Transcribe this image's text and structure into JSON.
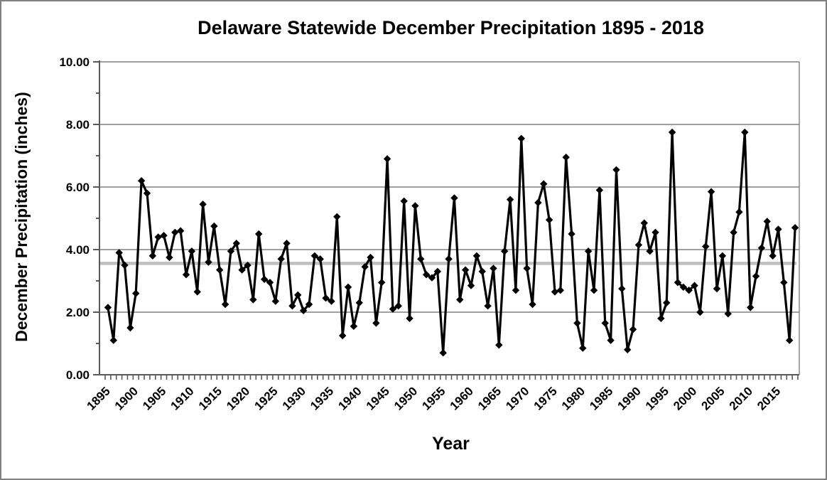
{
  "header": {
    "title": "Delaware Statewide December Precipitation 1895 - 2018"
  },
  "axes": {
    "y_title": "December Precipitation (inches)",
    "x_title": "Year"
  },
  "chart_data": {
    "type": "line",
    "title": "Delaware Statewide December Precipitation 1895 - 2018",
    "xlabel": "Year",
    "ylabel": "December Precipitation (inches)",
    "ylim": [
      0,
      10
    ],
    "y_major_ticks": [
      0,
      2,
      4,
      6,
      8,
      10
    ],
    "y_tick_labels": [
      "0.00",
      "2.00",
      "4.00",
      "6.00",
      "8.00",
      "10.00"
    ],
    "y_minor_unit": 1,
    "x_tick_label_years": [
      1895,
      1900,
      1905,
      1910,
      1915,
      1920,
      1925,
      1930,
      1935,
      1940,
      1945,
      1950,
      1955,
      1960,
      1965,
      1970,
      1975,
      1980,
      1985,
      1990,
      1995,
      2000,
      2005,
      2010,
      2015
    ],
    "grid": "horizontal-major",
    "legend": "none",
    "marker": "diamond",
    "mean_line_value": 3.56,
    "colors": {
      "series": "#000000",
      "mean_line": "#bfbfbf",
      "gridline": "#808080",
      "axis": "#595959",
      "background": "#ffffff",
      "frame_border": "#808080"
    },
    "years": [
      1895,
      1896,
      1897,
      1898,
      1899,
      1900,
      1901,
      1902,
      1903,
      1904,
      1905,
      1906,
      1907,
      1908,
      1909,
      1910,
      1911,
      1912,
      1913,
      1914,
      1915,
      1916,
      1917,
      1918,
      1919,
      1920,
      1921,
      1922,
      1923,
      1924,
      1925,
      1926,
      1927,
      1928,
      1929,
      1930,
      1931,
      1932,
      1933,
      1934,
      1935,
      1936,
      1937,
      1938,
      1939,
      1940,
      1941,
      1942,
      1943,
      1944,
      1945,
      1946,
      1947,
      1948,
      1949,
      1950,
      1951,
      1952,
      1953,
      1954,
      1955,
      1956,
      1957,
      1958,
      1959,
      1960,
      1961,
      1962,
      1963,
      1964,
      1965,
      1966,
      1967,
      1968,
      1969,
      1970,
      1971,
      1972,
      1973,
      1974,
      1975,
      1976,
      1977,
      1978,
      1979,
      1980,
      1981,
      1982,
      1983,
      1984,
      1985,
      1986,
      1987,
      1988,
      1989,
      1990,
      1991,
      1992,
      1993,
      1994,
      1995,
      1996,
      1997,
      1998,
      1999,
      2000,
      2001,
      2002,
      2003,
      2004,
      2005,
      2006,
      2007,
      2008,
      2009,
      2010,
      2011,
      2012,
      2013,
      2014,
      2015,
      2016,
      2017,
      2018
    ],
    "values": [
      2.15,
      1.1,
      3.9,
      3.5,
      1.5,
      2.6,
      6.2,
      5.8,
      3.8,
      4.4,
      4.45,
      3.75,
      4.55,
      4.6,
      3.2,
      3.95,
      2.65,
      5.45,
      3.6,
      4.75,
      3.35,
      2.25,
      3.95,
      4.2,
      3.35,
      3.5,
      2.4,
      4.5,
      3.05,
      2.95,
      2.35,
      3.7,
      4.2,
      2.2,
      2.55,
      2.05,
      2.25,
      3.8,
      3.7,
      2.45,
      2.35,
      5.05,
      1.25,
      2.8,
      1.55,
      2.3,
      3.45,
      3.75,
      1.65,
      2.95,
      6.9,
      2.1,
      2.2,
      5.55,
      1.8,
      5.4,
      3.7,
      3.2,
      3.1,
      3.3,
      0.7,
      3.7,
      5.65,
      2.4,
      3.35,
      2.85,
      3.8,
      3.3,
      2.2,
      3.4,
      0.95,
      3.95,
      5.6,
      2.7,
      7.55,
      3.4,
      2.25,
      5.5,
      6.1,
      4.95,
      2.65,
      2.7,
      6.95,
      4.5,
      1.65,
      0.85,
      3.95,
      2.7,
      5.9,
      1.65,
      1.1,
      6.55,
      2.75,
      0.8,
      1.45,
      4.15,
      4.85,
      3.95,
      4.55,
      1.8,
      2.3,
      7.75,
      2.95,
      2.8,
      2.7,
      2.85,
      2.0,
      4.1,
      5.85,
      2.75,
      3.8,
      1.95,
      4.55,
      5.2,
      7.75,
      2.15,
      3.15,
      4.05,
      4.9,
      3.8,
      4.65,
      2.95,
      1.1,
      4.7
    ]
  }
}
